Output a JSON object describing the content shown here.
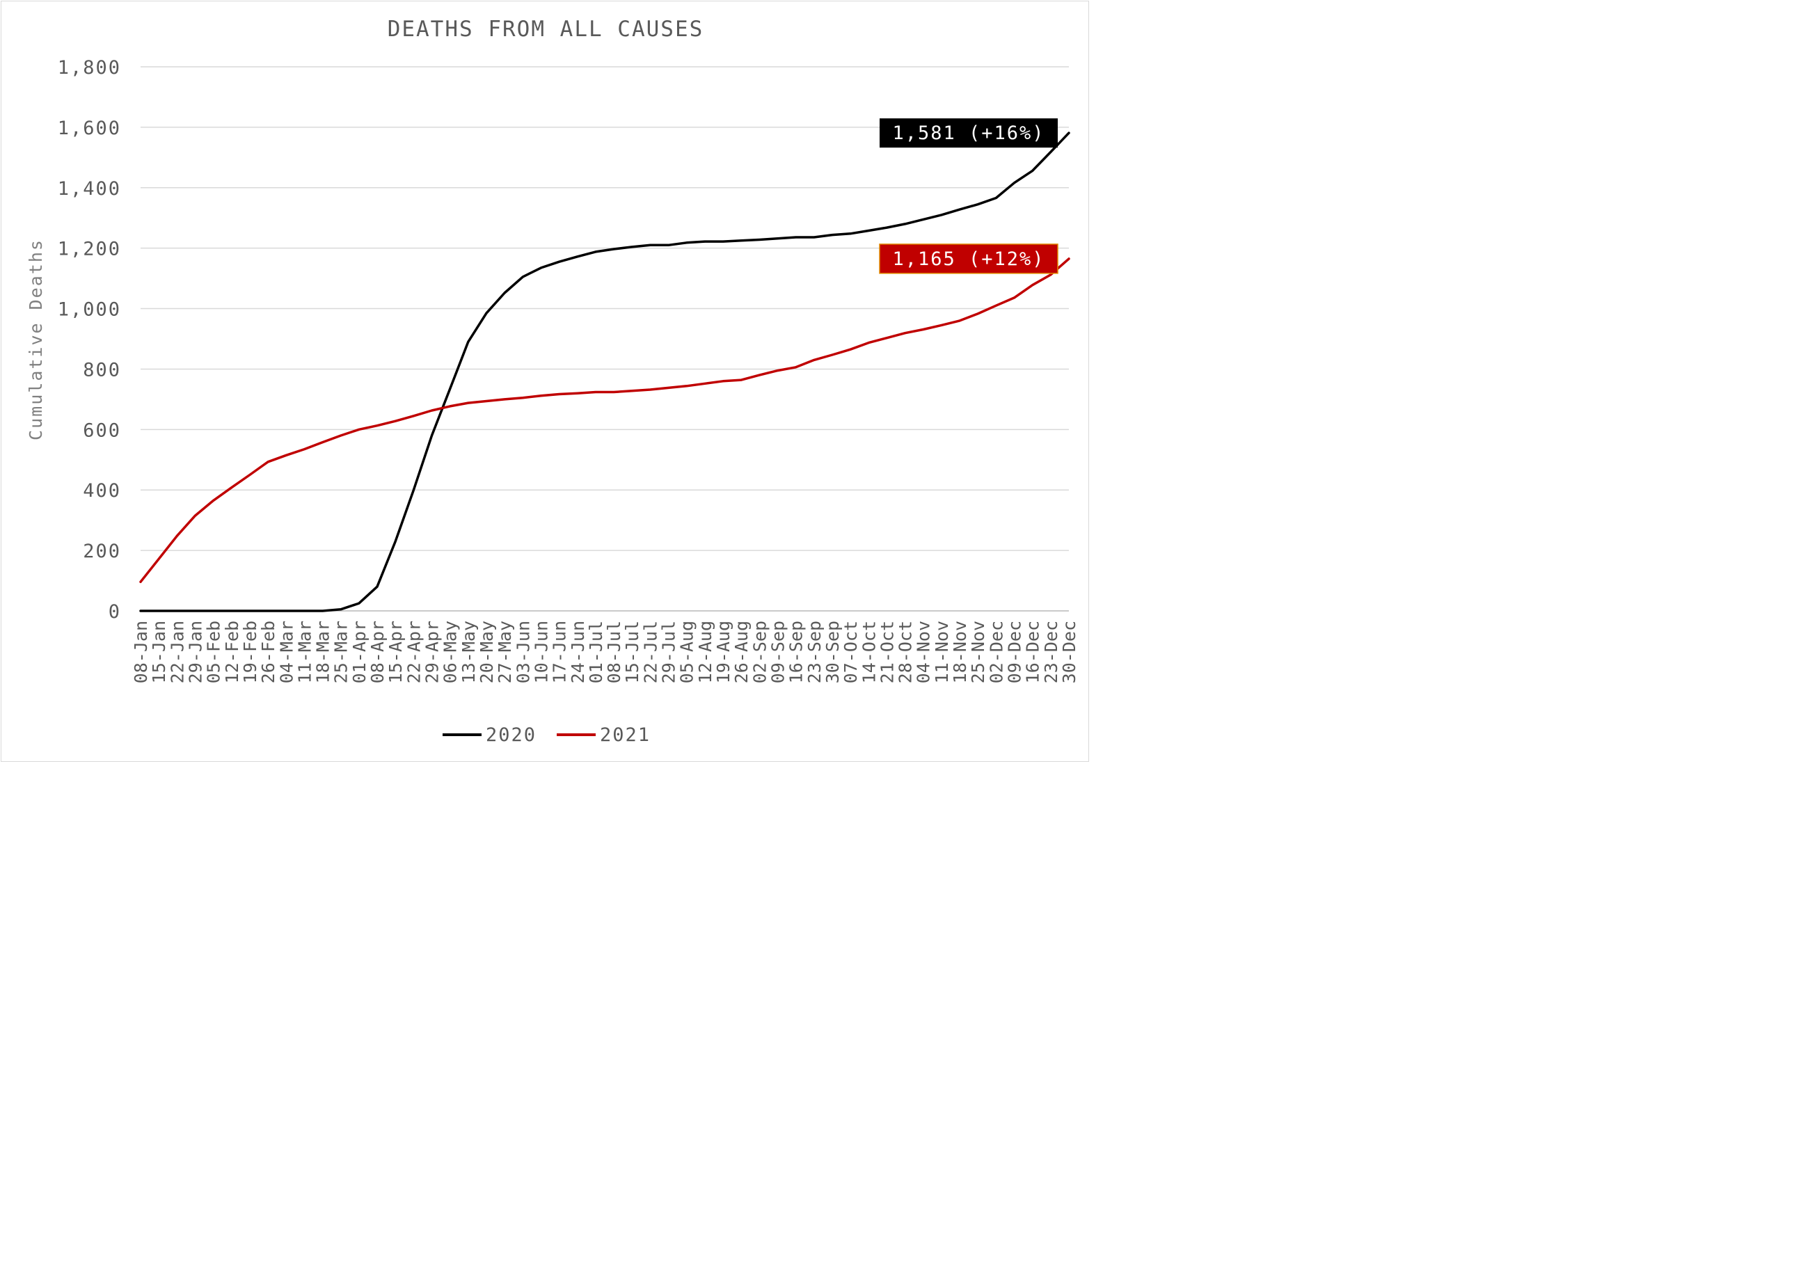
{
  "chart_data": {
    "type": "line",
    "title": "DEATHS FROM ALL CAUSES",
    "xlabel": "",
    "ylabel": "Cumulative Deaths",
    "ylim": [
      0,
      1800
    ],
    "yticks": [
      0,
      200,
      400,
      600,
      800,
      1000,
      1200,
      1400,
      1600,
      1800
    ],
    "ytick_labels": [
      "0",
      "200",
      "400",
      "600",
      "800",
      "1,000",
      "1,200",
      "1,400",
      "1,600",
      "1,800"
    ],
    "grid": true,
    "legend_position": "bottom",
    "categories": [
      "08-Jan",
      "15-Jan",
      "22-Jan",
      "29-Jan",
      "05-Feb",
      "12-Feb",
      "19-Feb",
      "26-Feb",
      "04-Mar",
      "11-Mar",
      "18-Mar",
      "25-Mar",
      "01-Apr",
      "08-Apr",
      "15-Apr",
      "22-Apr",
      "29-Apr",
      "06-May",
      "13-May",
      "20-May",
      "27-May",
      "03-Jun",
      "10-Jun",
      "17-Jun",
      "24-Jun",
      "01-Jul",
      "08-Jul",
      "15-Jul",
      "22-Jul",
      "29-Jul",
      "05-Aug",
      "12-Aug",
      "19-Aug",
      "26-Aug",
      "02-Sep",
      "09-Sep",
      "16-Sep",
      "23-Sep",
      "30-Sep",
      "07-Oct",
      "14-Oct",
      "21-Oct",
      "28-Oct",
      "04-Nov",
      "11-Nov",
      "18-Nov",
      "25-Nov",
      "02-Dec",
      "09-Dec",
      "16-Dec",
      "23-Dec",
      "30-Dec"
    ],
    "series": [
      {
        "name": "2020",
        "color": "#000000",
        "values": [
          0,
          0,
          0,
          0,
          0,
          0,
          0,
          0,
          0,
          0,
          0,
          5,
          25,
          80,
          230,
          400,
          580,
          735,
          890,
          985,
          1052,
          1105,
          1135,
          1155,
          1172,
          1188,
          1197,
          1204,
          1210,
          1210,
          1218,
          1222,
          1222,
          1225,
          1228,
          1232,
          1236,
          1236,
          1244,
          1248,
          1258,
          1268,
          1280,
          1295,
          1310,
          1328,
          1345,
          1366,
          1416,
          1456,
          1518,
          1581
        ],
        "end_label": "1,581 (+16%)",
        "label_bg": "#000000"
      },
      {
        "name": "2021",
        "color": "#c00000",
        "values": [
          96,
          172,
          248,
          315,
          365,
          408,
          450,
          493,
          515,
          535,
          558,
          580,
          600,
          613,
          628,
          645,
          663,
          677,
          688,
          694,
          700,
          705,
          712,
          717,
          720,
          724,
          724,
          728,
          732,
          738,
          744,
          752,
          760,
          764,
          780,
          795,
          806,
          830,
          847,
          865,
          887,
          903,
          919,
          931,
          945,
          960,
          983,
          1010,
          1036,
          1078,
          1112,
          1165
        ],
        "end_label": "1,165 (+12%)",
        "label_bg": "#c00000"
      }
    ]
  }
}
